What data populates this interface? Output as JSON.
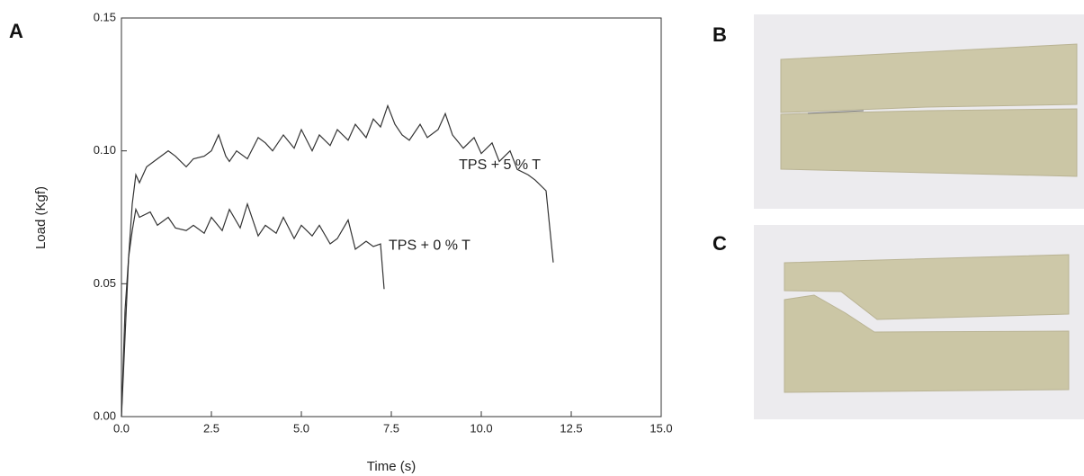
{
  "chart_data": {
    "type": "line",
    "panel_labels": [
      "A",
      "B",
      "C"
    ],
    "x_label": "Time (s)",
    "y_label": "Load (Kgf)",
    "xlim": [
      0,
      15
    ],
    "ylim": [
      0,
      0.15
    ],
    "xticks": [
      {
        "value": 0,
        "label": "0.0"
      },
      2.5,
      {
        "value": 5,
        "label": "5.0"
      },
      7.5,
      {
        "value": 10,
        "label": "10.0"
      },
      12.5,
      {
        "value": 15,
        "label": "15.0"
      }
    ],
    "yticks": [
      {
        "value": 0,
        "label": "0.00"
      },
      0.05,
      {
        "value": 0.1,
        "label": "0.10"
      },
      0.15
    ],
    "series": [
      {
        "name": "TPS + 5 % T",
        "color": "#333333",
        "x": [
          0,
          0.1,
          0.2,
          0.3,
          0.4,
          0.5,
          0.7,
          1.0,
          1.3,
          1.5,
          1.8,
          2.0,
          2.3,
          2.5,
          2.7,
          2.9,
          3.0,
          3.2,
          3.5,
          3.8,
          4.0,
          4.2,
          4.5,
          4.8,
          5.0,
          5.3,
          5.5,
          5.8,
          6.0,
          6.3,
          6.5,
          6.8,
          7.0,
          7.2,
          7.4,
          7.6,
          7.8,
          8.0,
          8.3,
          8.5,
          8.8,
          9.0,
          9.2,
          9.5,
          9.8,
          10.0,
          10.3,
          10.5,
          10.8,
          11.0,
          11.3,
          11.5,
          11.8,
          12.0
        ],
        "values": [
          0,
          0.03,
          0.06,
          0.08,
          0.091,
          0.088,
          0.094,
          0.097,
          0.1,
          0.098,
          0.094,
          0.097,
          0.098,
          0.1,
          0.106,
          0.098,
          0.096,
          0.1,
          0.097,
          0.105,
          0.103,
          0.1,
          0.106,
          0.101,
          0.108,
          0.1,
          0.106,
          0.102,
          0.108,
          0.104,
          0.11,
          0.105,
          0.112,
          0.109,
          0.117,
          0.11,
          0.106,
          0.104,
          0.11,
          0.105,
          0.108,
          0.114,
          0.106,
          0.101,
          0.105,
          0.099,
          0.103,
          0.096,
          0.1,
          0.093,
          0.091,
          0.089,
          0.085,
          0.058
        ]
      },
      {
        "name": "TPS + 0 % T",
        "color": "#333333",
        "x": [
          0,
          0.1,
          0.2,
          0.3,
          0.4,
          0.5,
          0.8,
          1.0,
          1.3,
          1.5,
          1.8,
          2.0,
          2.3,
          2.5,
          2.8,
          3.0,
          3.3,
          3.5,
          3.8,
          4.0,
          4.3,
          4.5,
          4.8,
          5.0,
          5.3,
          5.5,
          5.8,
          6.0,
          6.3,
          6.5,
          6.8,
          7.0,
          7.2,
          7.3
        ],
        "values": [
          0,
          0.04,
          0.06,
          0.07,
          0.078,
          0.075,
          0.077,
          0.072,
          0.075,
          0.071,
          0.07,
          0.072,
          0.069,
          0.075,
          0.07,
          0.078,
          0.071,
          0.08,
          0.068,
          0.072,
          0.069,
          0.075,
          0.067,
          0.072,
          0.068,
          0.072,
          0.065,
          0.067,
          0.074,
          0.063,
          0.066,
          0.064,
          0.065,
          0.048
        ]
      }
    ]
  }
}
